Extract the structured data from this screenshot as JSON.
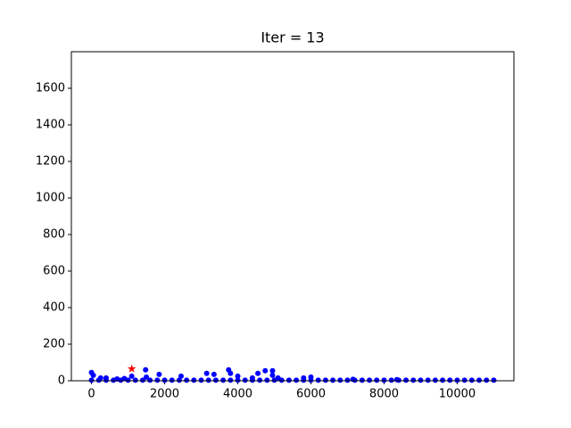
{
  "chart_data": {
    "type": "scatter",
    "title": "Iter = 13",
    "series": [
      {
        "color": "#0000ff",
        "marker": "circle",
        "x": [
          0,
          200,
          400,
          600,
          800,
          1000,
          1200,
          1400,
          1600,
          1800,
          2000,
          2200,
          2400,
          2600,
          2800,
          3000,
          3200,
          3400,
          3600,
          3800,
          4000,
          4200,
          4400,
          4600,
          4800,
          5000,
          5200,
          5400,
          5600,
          5800,
          6000,
          6200,
          6400,
          6600,
          6800,
          7000,
          7200,
          7400,
          7600,
          7800,
          8000,
          8200,
          8400,
          8600,
          8800,
          9000,
          9200,
          9400,
          9600,
          9800,
          10000,
          10200,
          10400,
          10600,
          10800,
          11000,
          0,
          50,
          250,
          400,
          700,
          900,
          1100,
          1480,
          1500,
          1850,
          2450,
          3150,
          3350,
          3750,
          3800,
          4000,
          4400,
          4550,
          4750,
          4950,
          4950,
          5100,
          5800,
          6000,
          7150,
          8350
        ],
        "values": [
          3,
          3,
          3,
          3,
          3,
          3,
          3,
          3,
          3,
          3,
          3,
          3,
          3,
          3,
          3,
          3,
          3,
          3,
          3,
          3,
          3,
          3,
          3,
          3,
          3,
          3,
          3,
          3,
          3,
          3,
          3,
          3,
          3,
          3,
          3,
          3,
          3,
          3,
          3,
          3,
          3,
          3,
          3,
          3,
          3,
          3,
          3,
          3,
          3,
          3,
          3,
          3,
          3,
          3,
          3,
          3,
          45,
          30,
          15,
          15,
          10,
          12,
          25,
          60,
          20,
          35,
          25,
          40,
          35,
          60,
          40,
          25,
          15,
          40,
          55,
          55,
          30,
          15,
          15,
          20,
          8,
          6
        ]
      },
      {
        "color": "#ff0000",
        "marker": "star",
        "x": [
          1100
        ],
        "values": [
          65
        ]
      }
    ],
    "xlim": [
      -550,
      11550
    ],
    "ylim": [
      0,
      1800
    ],
    "xticks": [
      0,
      2000,
      4000,
      6000,
      8000,
      10000
    ],
    "yticks": [
      0,
      200,
      400,
      600,
      800,
      1000,
      1200,
      1400,
      1600
    ]
  }
}
